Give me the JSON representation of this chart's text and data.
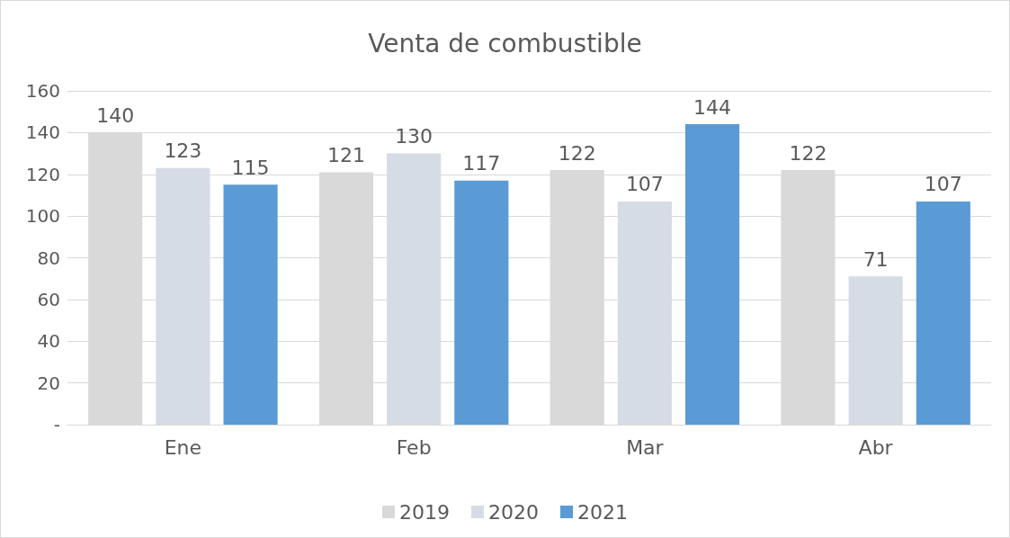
{
  "chart_data": {
    "type": "bar",
    "title": "Venta de combustible",
    "categories": [
      "Ene",
      "Feb",
      "Mar",
      "Abr"
    ],
    "series": [
      {
        "name": "2019",
        "color": "#d9d9d9",
        "values": [
          140,
          121,
          122,
          122
        ]
      },
      {
        "name": "2020",
        "color": "#d6dce5",
        "values": [
          123,
          130,
          107,
          71
        ]
      },
      {
        "name": "2021",
        "color": "#5b9bd5",
        "values": [
          115,
          117,
          144,
          107
        ]
      }
    ],
    "ylim": [
      0,
      160
    ],
    "yticks": [
      {
        "value": 0,
        "label": "-"
      },
      20,
      40,
      60,
      80,
      100,
      120,
      140,
      160
    ],
    "grid": "y",
    "legend": "bottom",
    "data_labels": true
  }
}
